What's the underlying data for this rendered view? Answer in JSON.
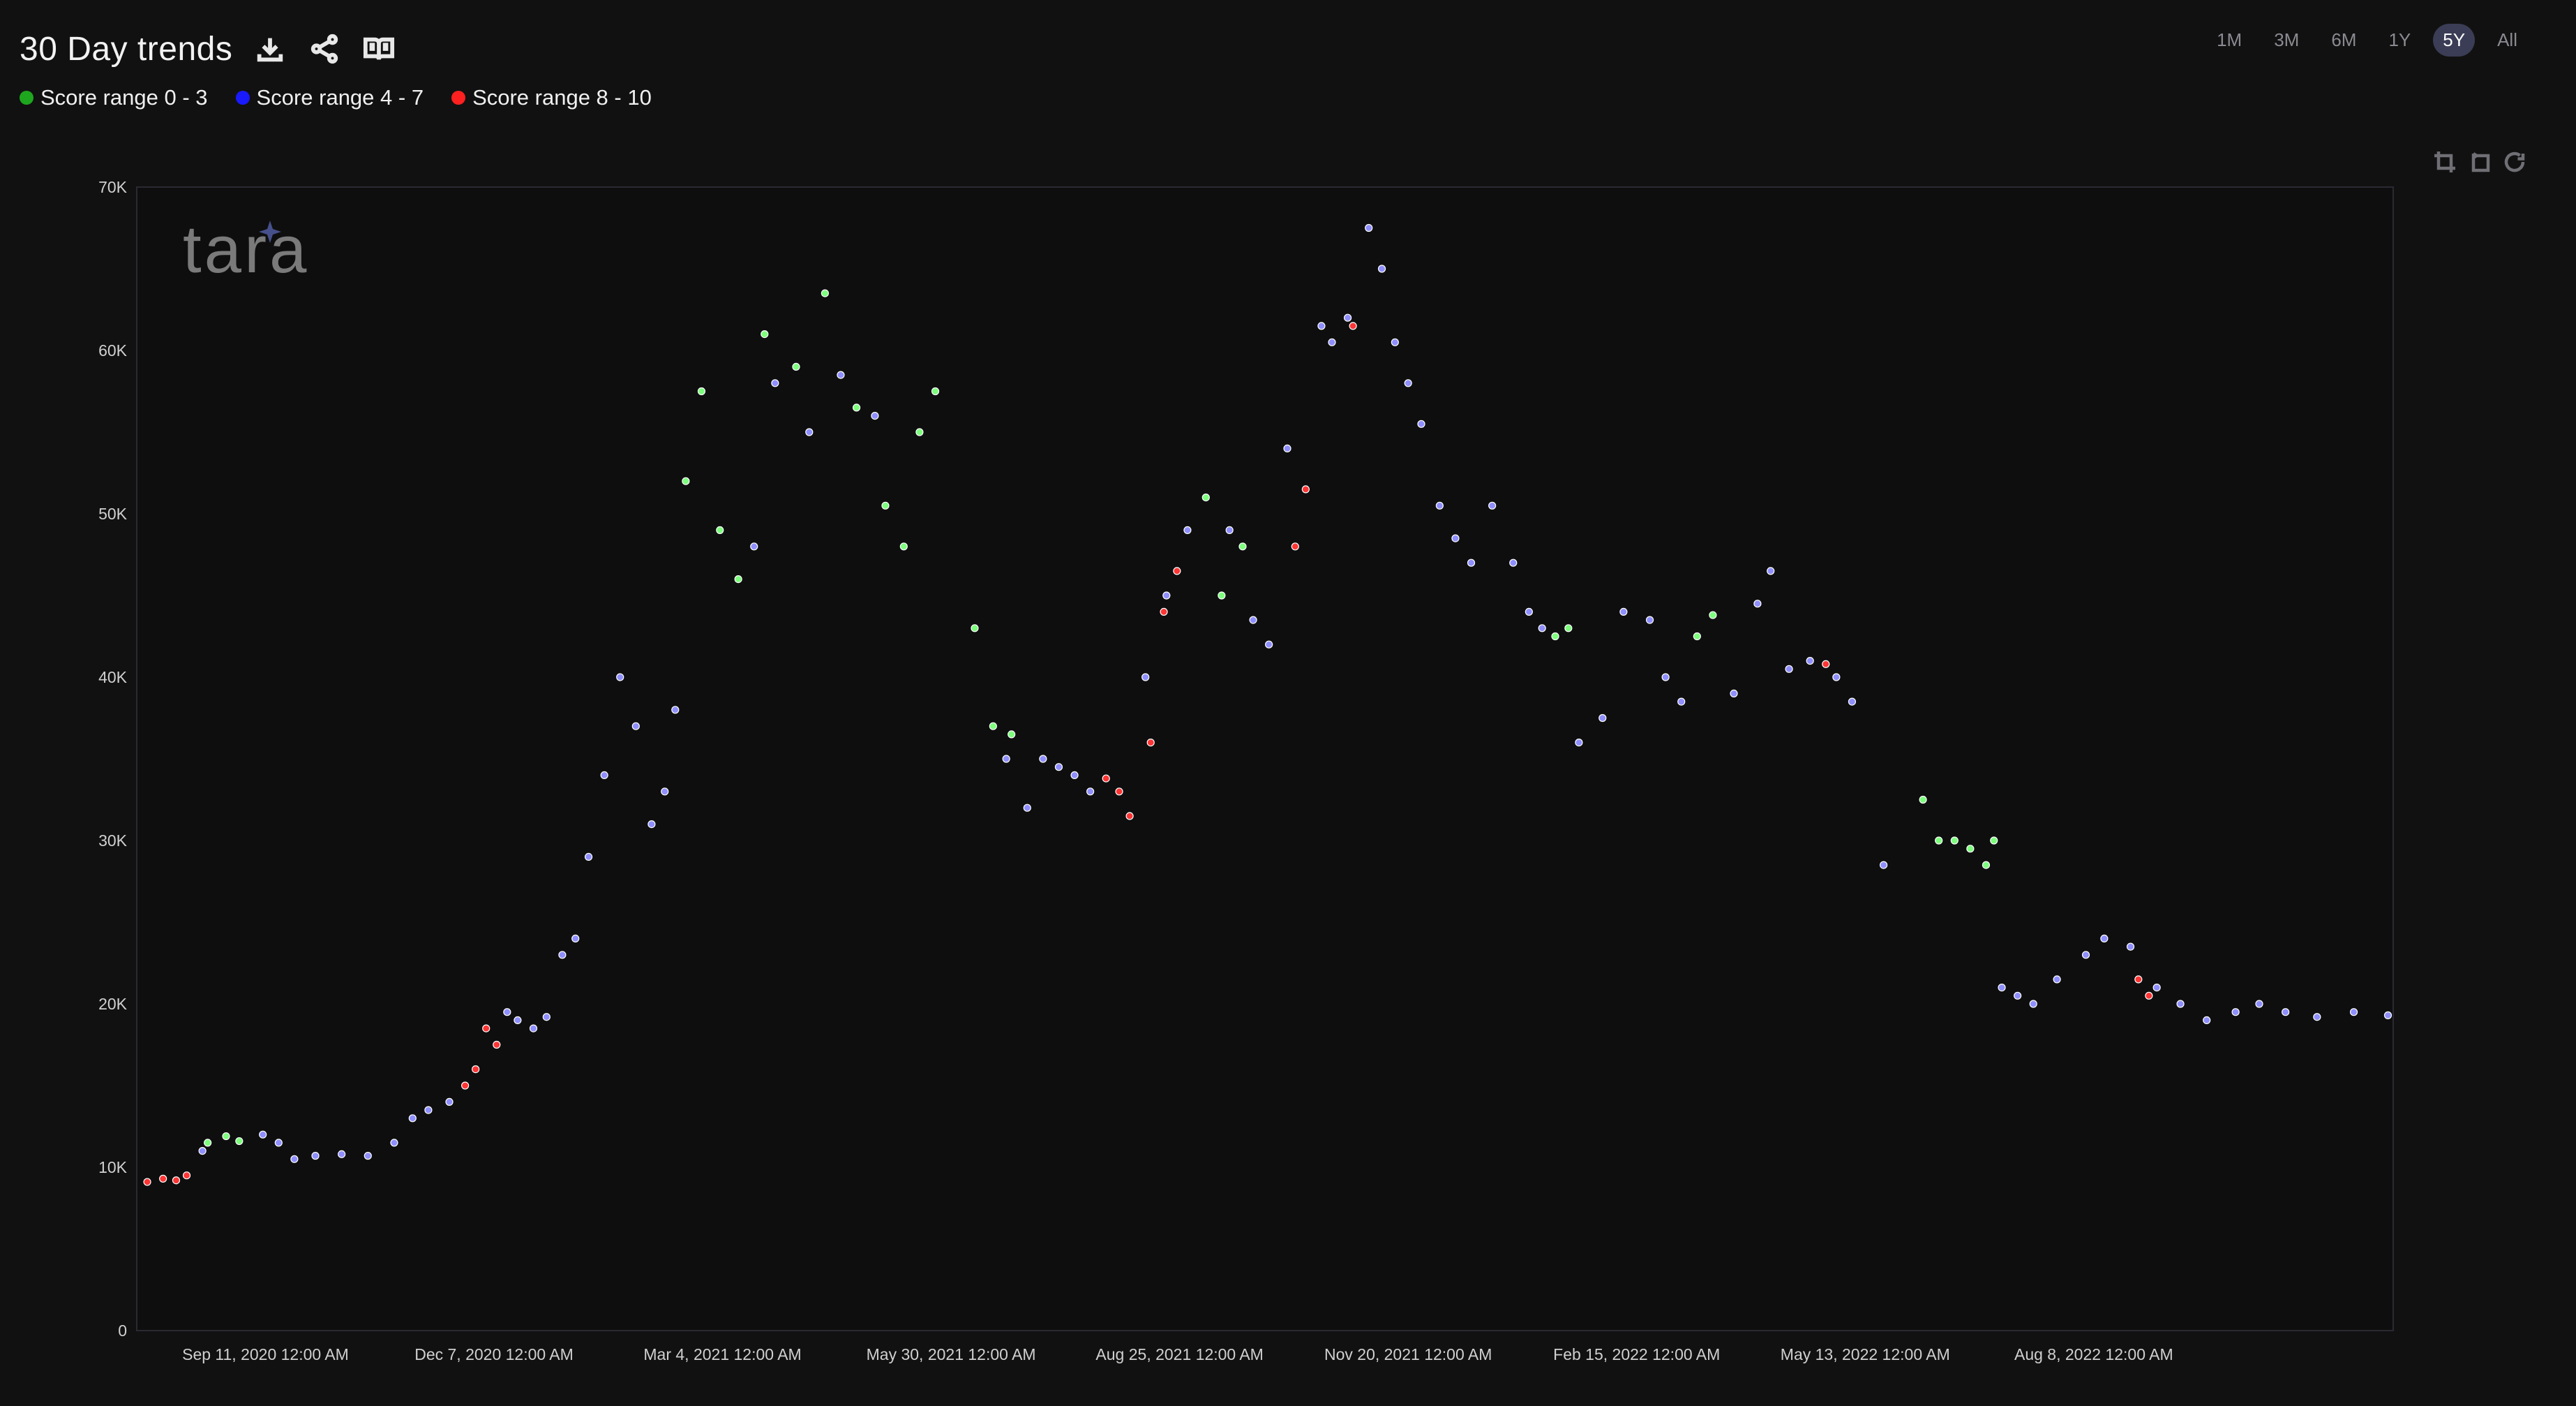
{
  "header": {
    "title": "30 Day trends",
    "icons": [
      "download-icon",
      "share-icon",
      "book-icon"
    ]
  },
  "legend": [
    {
      "label": "Score range 0 - 3",
      "color": "#1fa61f"
    },
    {
      "label": "Score range 4 - 7",
      "color": "#1a1aff"
    },
    {
      "label": "Score range 8 - 10",
      "color": "#ff2020"
    }
  ],
  "ranges": {
    "items": [
      "1M",
      "3M",
      "6M",
      "1Y",
      "5Y",
      "All"
    ],
    "selected": "5Y"
  },
  "toolbar": {
    "icons": [
      "zoom-in-icon",
      "zoom-back-icon",
      "reset-icon"
    ]
  },
  "watermark": {
    "text": "tara"
  },
  "chart_data": {
    "type": "scatter",
    "legend_position": "top-left",
    "grid": false,
    "ylim": [
      0,
      70000
    ],
    "yticks": [
      0,
      10000,
      20000,
      30000,
      40000,
      50000,
      60000,
      70000
    ],
    "ytick_labels": [
      "0",
      "10K",
      "20K",
      "30K",
      "40K",
      "50K",
      "60K",
      "70K"
    ],
    "xlim": [
      "2020-07-24",
      "2022-11-30"
    ],
    "xticks": [
      "2020-09-11",
      "2020-12-07",
      "2021-03-04",
      "2021-05-30",
      "2021-08-25",
      "2021-11-20",
      "2022-02-15",
      "2022-05-13",
      "2022-08-08"
    ],
    "xtick_labels": [
      "Sep 11, 2020 12:00 AM",
      "Dec 7, 2020 12:00 AM",
      "Mar 4, 2021 12:00 AM",
      "May 30, 2021 12:00 AM",
      "Aug 25, 2021 12:00 AM",
      "Nov 20, 2021 12:00 AM",
      "Feb 15, 2022 12:00 AM",
      "May 13, 2022 12:00 AM",
      "Aug 8, 2022 12:00 AM"
    ],
    "colors": {
      "0-3": "#7dff7d",
      "4-7": "#8f8fff",
      "8-10": "#ff3535"
    },
    "series": [
      {
        "name": "Score range 0 - 3",
        "key": "0-3",
        "x": [
          "2020-08-20",
          "2020-08-27",
          "2020-09-01",
          "2021-02-18",
          "2021-02-24",
          "2021-03-03",
          "2021-03-10",
          "2021-03-20",
          "2021-04-01",
          "2021-04-12",
          "2021-04-24",
          "2021-05-05",
          "2021-05-12",
          "2021-05-18",
          "2021-05-24",
          "2021-06-08",
          "2021-06-15",
          "2021-06-22",
          "2021-09-04",
          "2021-09-10",
          "2021-09-18",
          "2022-01-15",
          "2022-01-20",
          "2022-03-10",
          "2022-03-16",
          "2022-06-04",
          "2022-06-10",
          "2022-06-16",
          "2022-06-22",
          "2022-06-28",
          "2022-07-01"
        ],
        "y": [
          11500,
          11900,
          11600,
          52000,
          57500,
          49000,
          46000,
          61000,
          59000,
          63500,
          56500,
          50500,
          48000,
          55000,
          57500,
          43000,
          37000,
          36500,
          51000,
          45000,
          48000,
          42500,
          43000,
          42500,
          43800,
          32500,
          30000,
          30000,
          29500,
          28500,
          30000
        ]
      },
      {
        "name": "Score range 4 - 7",
        "key": "4-7",
        "x": [
          "2020-08-18",
          "2020-09-10",
          "2020-09-16",
          "2020-09-22",
          "2020-09-30",
          "2020-10-10",
          "2020-10-20",
          "2020-10-30",
          "2020-11-06",
          "2020-11-12",
          "2020-11-20",
          "2020-12-12",
          "2020-12-16",
          "2020-12-22",
          "2020-12-27",
          "2021-01-02",
          "2021-01-07",
          "2021-01-12",
          "2021-01-18",
          "2021-01-24",
          "2021-01-30",
          "2021-02-05",
          "2021-02-10",
          "2021-02-14",
          "2021-03-16",
          "2021-03-24",
          "2021-04-06",
          "2021-04-18",
          "2021-05-01",
          "2021-06-20",
          "2021-06-28",
          "2021-07-04",
          "2021-07-10",
          "2021-07-16",
          "2021-07-22",
          "2021-08-12",
          "2021-08-20",
          "2021-08-28",
          "2021-09-13",
          "2021-09-22",
          "2021-09-28",
          "2021-10-05",
          "2021-10-18",
          "2021-10-22",
          "2021-10-28",
          "2021-11-05",
          "2021-11-10",
          "2021-11-15",
          "2021-11-20",
          "2021-11-25",
          "2021-12-02",
          "2021-12-08",
          "2021-12-14",
          "2021-12-22",
          "2021-12-30",
          "2022-01-05",
          "2022-01-10",
          "2022-01-24",
          "2022-02-02",
          "2022-02-10",
          "2022-02-20",
          "2022-02-26",
          "2022-03-04",
          "2022-03-24",
          "2022-04-02",
          "2022-04-07",
          "2022-04-14",
          "2022-04-22",
          "2022-05-02",
          "2022-05-08",
          "2022-05-20",
          "2022-07-04",
          "2022-07-10",
          "2022-07-16",
          "2022-07-25",
          "2022-08-05",
          "2022-08-12",
          "2022-08-22",
          "2022-09-01",
          "2022-09-10",
          "2022-09-20",
          "2022-10-01",
          "2022-10-10",
          "2022-10-20",
          "2022-11-01",
          "2022-11-15",
          "2022-11-28"
        ],
        "y": [
          11000,
          12000,
          11500,
          10500,
          10700,
          10800,
          10700,
          11500,
          13000,
          13500,
          14000,
          19500,
          19000,
          18500,
          19200,
          23000,
          24000,
          29000,
          34000,
          40000,
          37000,
          31000,
          33000,
          38000,
          48000,
          58000,
          55000,
          58500,
          56000,
          35000,
          32000,
          35000,
          34500,
          34000,
          33000,
          40000,
          45000,
          49000,
          49000,
          43500,
          42000,
          54000,
          61500,
          60500,
          62000,
          67500,
          65000,
          60500,
          58000,
          55500,
          50500,
          48500,
          47000,
          50500,
          47000,
          44000,
          43000,
          36000,
          37500,
          44000,
          43500,
          40000,
          38500,
          39000,
          44500,
          46500,
          40500,
          41000,
          40000,
          38500,
          28500,
          21000,
          20500,
          20000,
          21500,
          23000,
          24000,
          23500,
          21000,
          20000,
          19000,
          19500,
          20000,
          19500,
          19200,
          19500,
          19300
        ]
      },
      {
        "name": "Score range 8 - 10",
        "key": "8-10",
        "x": [
          "2020-07-28",
          "2020-08-03",
          "2020-08-08",
          "2020-08-12",
          "2020-11-26",
          "2020-11-30",
          "2020-12-04",
          "2020-12-08",
          "2021-07-28",
          "2021-08-02",
          "2021-08-06",
          "2021-08-14",
          "2021-08-19",
          "2021-08-24",
          "2021-10-08",
          "2021-10-12",
          "2021-10-30",
          "2022-04-28",
          "2022-08-25",
          "2022-08-29"
        ],
        "y": [
          9100,
          9300,
          9200,
          9500,
          15000,
          16000,
          18500,
          17500,
          33800,
          33000,
          31500,
          36000,
          44000,
          46500,
          48000,
          51500,
          61500,
          40800,
          21500,
          20500
        ]
      }
    ]
  }
}
